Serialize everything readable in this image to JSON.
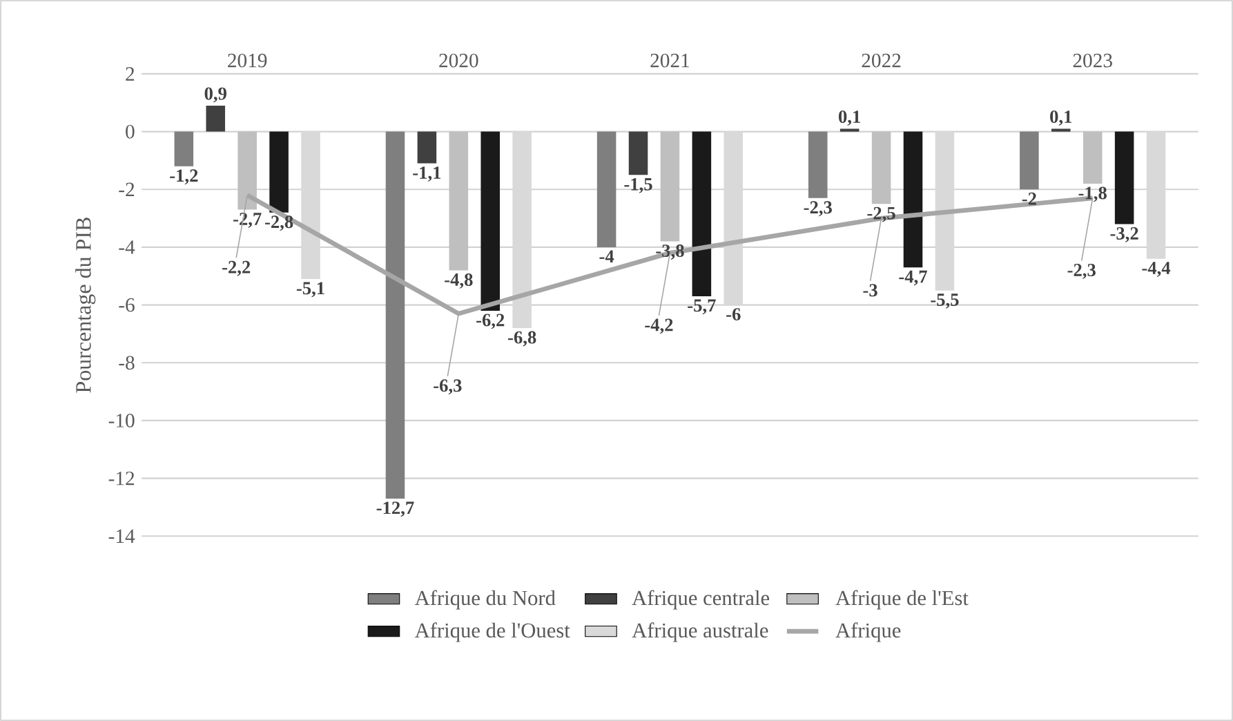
{
  "chart_data": {
    "type": "bar",
    "ylabel": "Pourcentage du PIB",
    "categories": [
      "2019",
      "2020",
      "2021",
      "2022",
      "2023"
    ],
    "series": [
      {
        "name": "Afrique du Nord",
        "color": "#7f7f7f",
        "values": [
          -1.2,
          -12.7,
          -4,
          -2.3,
          -2
        ],
        "value_labels": [
          "-1,2",
          "-12,7",
          "-4",
          "-2,3",
          "-2"
        ]
      },
      {
        "name": "Afrique centrale",
        "color": "#404040",
        "values": [
          0.9,
          -1.1,
          -1.5,
          0.1,
          0.1
        ],
        "value_labels": [
          "0,9",
          "-1,1",
          "-1,5",
          "0,1",
          "0,1"
        ]
      },
      {
        "name": "Afrique de l'Est",
        "color": "#bfbfbf",
        "values": [
          -2.7,
          -4.8,
          -3.8,
          -2.5,
          -1.8
        ],
        "value_labels": [
          "-2,7",
          "-4,8",
          "-3,8",
          "-2,5",
          "-1,8"
        ]
      },
      {
        "name": "Afrique de l'Ouest",
        "color": "#1a1a1a",
        "values": [
          -2.8,
          -6.2,
          -5.7,
          -4.7,
          -3.2
        ],
        "value_labels": [
          "-2,8",
          "-6,2",
          "-5,7",
          "-4,7",
          "-3,2"
        ]
      },
      {
        "name": "Afrique australe",
        "color": "#d9d9d9",
        "values": [
          -5.1,
          -6.8,
          -6,
          -5.5,
          -4.4
        ],
        "value_labels": [
          "-5,1",
          "-6,8",
          "-6",
          "-5,5",
          "-4,4"
        ]
      },
      {
        "name": "Afrique",
        "type": "line",
        "color": "#a6a6a6",
        "line_style": "solid",
        "values": [
          -2.2,
          -6.3,
          -4.2,
          -3,
          -2.3
        ],
        "value_labels": [
          "-2,2",
          "-6,3",
          "-4,2",
          "-3",
          "-2,3"
        ]
      }
    ],
    "ylim": [
      -14,
      2
    ],
    "yticks": [
      -14,
      -12,
      -10,
      -8,
      -6,
      -4,
      -2,
      0,
      2
    ],
    "grid": "y",
    "legend": "bottom"
  }
}
